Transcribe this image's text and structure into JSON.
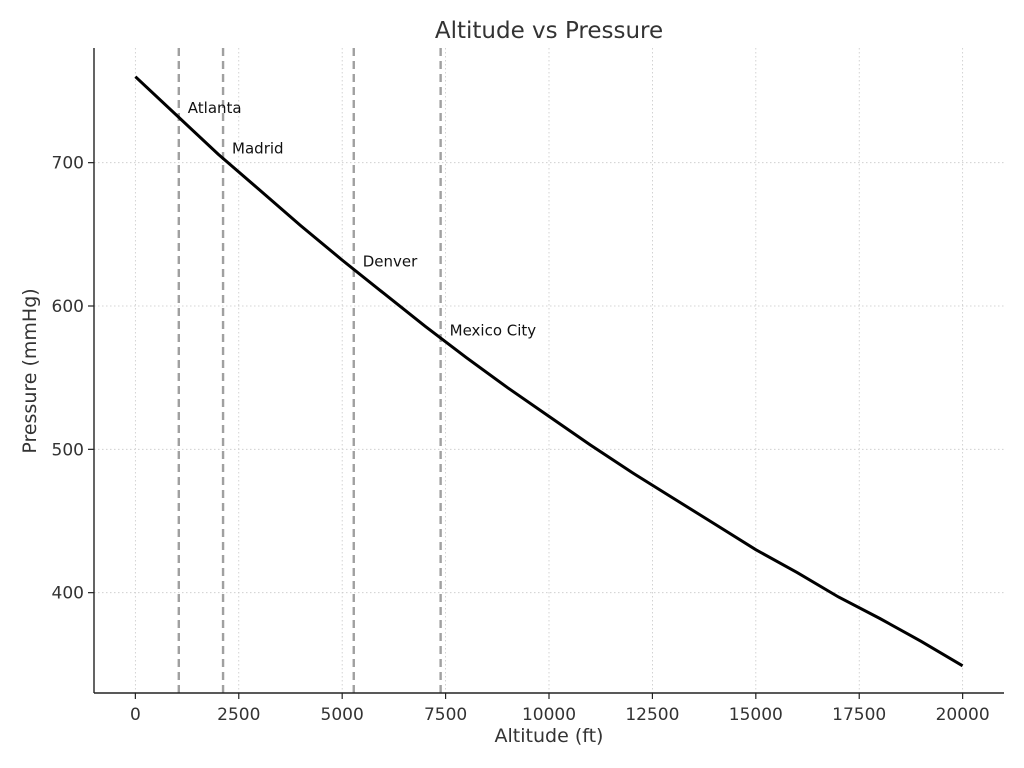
{
  "chart_data": {
    "type": "line",
    "title": "Altitude vs Pressure",
    "xlabel": "Altitude (ft)",
    "ylabel": "Pressure (mmHg)",
    "xlim": [
      -1000,
      21000
    ],
    "ylim": [
      330,
      780
    ],
    "xticks": [
      0,
      2500,
      5000,
      7500,
      10000,
      12500,
      15000,
      17500,
      20000
    ],
    "yticks": [
      400,
      500,
      600,
      700
    ],
    "grid": true,
    "series": [
      {
        "color": "#000000",
        "x": [
          0,
          1000,
          2000,
          3000,
          4000,
          5000,
          6000,
          7000,
          8000,
          9000,
          10000,
          11000,
          12000,
          13000,
          14000,
          15000,
          16000,
          17000,
          18000,
          19000,
          20000
        ],
        "y": [
          760,
          733,
          706,
          681,
          656,
          632,
          609,
          586,
          564,
          543,
          523,
          503,
          484,
          466,
          448,
          430,
          414,
          397,
          382,
          366,
          349
        ]
      }
    ],
    "annotations": [
      {
        "label": "Atlanta",
        "x": 1050,
        "text_y": 738
      },
      {
        "label": "Madrid",
        "x": 2120,
        "text_y": 710
      },
      {
        "label": "Denver",
        "x": 5280,
        "text_y": 631
      },
      {
        "label": "Mexico City",
        "x": 7380,
        "text_y": 583
      }
    ],
    "reference_line_color": "#a0a0a0"
  }
}
